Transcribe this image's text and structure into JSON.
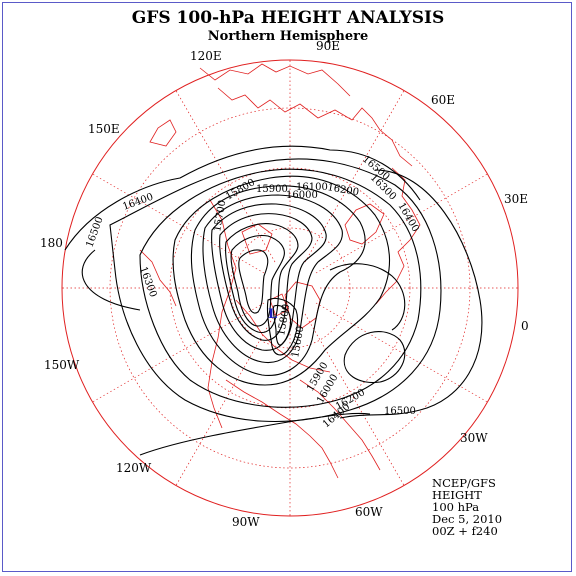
{
  "title": "GFS 100-hPa HEIGHT ANALYSIS",
  "subtitle": "Northern Hemisphere",
  "longitude_labels": [
    "90E",
    "60E",
    "30E",
    "0",
    "30W",
    "60W",
    "90W",
    "120W",
    "150W",
    "180",
    "150E",
    "120E"
  ],
  "contour_labels": [
    "16500",
    "16400",
    "16300",
    "16200",
    "16100",
    "16000",
    "15900",
    "15800",
    "15700",
    "16500",
    "16400",
    "16300",
    "16200",
    "16500",
    "16400",
    "15900",
    "16000",
    "15800",
    "15600"
  ],
  "low_marker": "L",
  "info": {
    "source": "NCEP/GFS",
    "field": "HEIGHT",
    "level": "100 hPa",
    "date": "Dec 5, 2010",
    "run": "00Z + f240"
  },
  "colors": {
    "map_lines": "#e02020",
    "contours": "#000000",
    "frame": "#5a5ac8",
    "low_marker": "#2020c0"
  }
}
